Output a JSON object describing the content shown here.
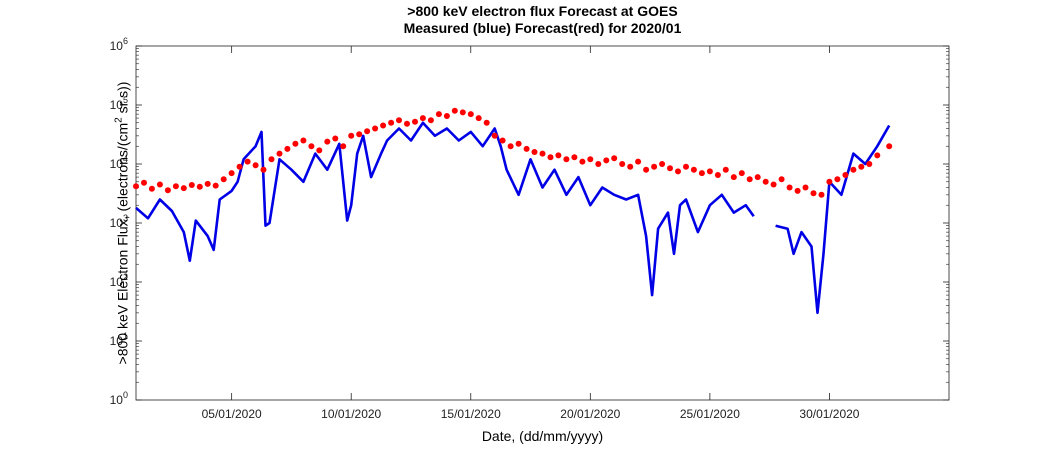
{
  "chart_data": {
    "type": "line",
    "title": ">800 keV electron flux Forecast at GOES",
    "subtitle": "Measured (blue) Forecast(red) for 2020/01",
    "xlabel": "Date, (dd/mm/yyyy)",
    "ylabel": ">800 keV Electron Flux, (electrons/(cm2 sr s))",
    "ylabel_parts": {
      "pre": ">800 keV Electron Flux, (electrons/(cm",
      "sup": "2",
      "post": " sr s))"
    },
    "y_scale": "log",
    "ylim": [
      1,
      1000000
    ],
    "xlim": [
      "2020-01-01",
      "2020-02-04"
    ],
    "grid": false,
    "x_ticks": [
      {
        "x": "2020-01-05",
        "label": "05/01/2020"
      },
      {
        "x": "2020-01-10",
        "label": "10/01/2020"
      },
      {
        "x": "2020-01-15",
        "label": "15/01/2020"
      },
      {
        "x": "2020-01-20",
        "label": "20/01/2020"
      },
      {
        "x": "2020-01-25",
        "label": "25/01/2020"
      },
      {
        "x": "2020-01-30",
        "label": "30/01/2020"
      }
    ],
    "y_ticks": [
      {
        "value": 1,
        "base": "10",
        "exp": "0"
      },
      {
        "value": 10,
        "base": "10",
        "exp": "1"
      },
      {
        "value": 100,
        "base": "10",
        "exp": "2"
      },
      {
        "value": 1000,
        "base": "10",
        "exp": "3"
      },
      {
        "value": 10000,
        "base": "10",
        "exp": "4"
      },
      {
        "value": 100000,
        "base": "10",
        "exp": "5"
      },
      {
        "value": 1000000,
        "base": "10",
        "exp": "6"
      }
    ],
    "series": [
      {
        "style": "line",
        "color": "#0000e6",
        "points": [
          [
            "2020-01-01 00:00",
            1800
          ],
          [
            "2020-01-01 12:00",
            1200
          ],
          [
            "2020-01-02 00:00",
            2500
          ],
          [
            "2020-01-02 12:00",
            1600
          ],
          [
            "2020-01-03 00:00",
            700
          ],
          [
            "2020-01-03 06:00",
            230
          ],
          [
            "2020-01-03 12:00",
            1100
          ],
          [
            "2020-01-04 00:00",
            600
          ],
          [
            "2020-01-04 06:00",
            350
          ],
          [
            "2020-01-04 12:00",
            2500
          ],
          [
            "2020-01-05 00:00",
            3500
          ],
          [
            "2020-01-05 06:00",
            5000
          ],
          [
            "2020-01-05 12:00",
            12000
          ],
          [
            "2020-01-06 00:00",
            20000
          ],
          [
            "2020-01-06 06:00",
            35000
          ],
          [
            "2020-01-06 10:00",
            900
          ],
          [
            "2020-01-06 14:00",
            1000
          ],
          [
            "2020-01-07 00:00",
            12000
          ],
          [
            "2020-01-07 12:00",
            8000
          ],
          [
            "2020-01-08 00:00",
            5000
          ],
          [
            "2020-01-08 12:00",
            15000
          ],
          [
            "2020-01-09 00:00",
            8000
          ],
          [
            "2020-01-09 12:00",
            22000
          ],
          [
            "2020-01-09 20:00",
            1100
          ],
          [
            "2020-01-10 00:00",
            2000
          ],
          [
            "2020-01-10 06:00",
            15000
          ],
          [
            "2020-01-10 12:00",
            30000
          ],
          [
            "2020-01-10 20:00",
            6000
          ],
          [
            "2020-01-11 06:00",
            15000
          ],
          [
            "2020-01-11 12:00",
            25000
          ],
          [
            "2020-01-12 00:00",
            40000
          ],
          [
            "2020-01-12 12:00",
            25000
          ],
          [
            "2020-01-13 00:00",
            50000
          ],
          [
            "2020-01-13 12:00",
            30000
          ],
          [
            "2020-01-14 00:00",
            40000
          ],
          [
            "2020-01-14 12:00",
            25000
          ],
          [
            "2020-01-15 00:00",
            35000
          ],
          [
            "2020-01-15 12:00",
            20000
          ],
          [
            "2020-01-16 00:00",
            40000
          ],
          [
            "2020-01-16 06:00",
            20000
          ],
          [
            "2020-01-16 12:00",
            8000
          ],
          [
            "2020-01-17 00:00",
            3000
          ],
          [
            "2020-01-17 12:00",
            12000
          ],
          [
            "2020-01-18 00:00",
            4000
          ],
          [
            "2020-01-18 12:00",
            8000
          ],
          [
            "2020-01-19 00:00",
            3000
          ],
          [
            "2020-01-19 12:00",
            6000
          ],
          [
            "2020-01-20 00:00",
            2000
          ],
          [
            "2020-01-20 12:00",
            4000
          ],
          [
            "2020-01-21 00:00",
            3000
          ],
          [
            "2020-01-21 12:00",
            2500
          ],
          [
            "2020-01-22 00:00",
            3000
          ],
          [
            "2020-01-22 08:00",
            600
          ],
          [
            "2020-01-22 14:00",
            60
          ],
          [
            "2020-01-22 20:00",
            800
          ],
          [
            "2020-01-23 06:00",
            1500
          ],
          [
            "2020-01-23 12:00",
            300
          ],
          [
            "2020-01-23 18:00",
            2000
          ],
          [
            "2020-01-24 00:00",
            2500
          ],
          [
            "2020-01-24 12:00",
            700
          ],
          [
            "2020-01-25 00:00",
            2000
          ],
          [
            "2020-01-25 12:00",
            3000
          ],
          [
            "2020-01-26 00:00",
            1500
          ],
          [
            "2020-01-26 12:00",
            2000
          ],
          [
            "2020-01-26 20:00",
            1300
          ],
          null,
          [
            "2020-01-27 18:00",
            900
          ],
          [
            "2020-01-28 06:00",
            800
          ],
          [
            "2020-01-28 12:00",
            300
          ],
          [
            "2020-01-28 20:00",
            700
          ],
          [
            "2020-01-29 06:00",
            400
          ],
          [
            "2020-01-29 12:00",
            30
          ],
          [
            "2020-01-29 18:00",
            300
          ],
          [
            "2020-01-30 00:00",
            5000
          ],
          [
            "2020-01-30 12:00",
            3000
          ],
          [
            "2020-01-31 00:00",
            15000
          ],
          [
            "2020-01-31 12:00",
            10000
          ],
          [
            "2020-02-01 00:00",
            20000
          ],
          [
            "2020-02-01 12:00",
            45000
          ]
        ]
      },
      {
        "style": "markers",
        "color": "#ff0000",
        "points": [
          [
            "2020-01-01 00:00",
            4200
          ],
          [
            "2020-01-01 08:00",
            4800
          ],
          [
            "2020-01-01 16:00",
            3800
          ],
          [
            "2020-01-02 00:00",
            4500
          ],
          [
            "2020-01-02 08:00",
            3600
          ],
          [
            "2020-01-02 16:00",
            4200
          ],
          [
            "2020-01-03 00:00",
            3900
          ],
          [
            "2020-01-03 08:00",
            4400
          ],
          [
            "2020-01-03 16:00",
            4100
          ],
          [
            "2020-01-04 00:00",
            4600
          ],
          [
            "2020-01-04 08:00",
            4300
          ],
          [
            "2020-01-04 16:00",
            5500
          ],
          [
            "2020-01-05 00:00",
            7000
          ],
          [
            "2020-01-05 08:00",
            9000
          ],
          [
            "2020-01-05 16:00",
            11000
          ],
          [
            "2020-01-06 00:00",
            9500
          ],
          [
            "2020-01-06 08:00",
            8000
          ],
          [
            "2020-01-06 16:00",
            12000
          ],
          [
            "2020-01-07 00:00",
            15000
          ],
          [
            "2020-01-07 08:00",
            18000
          ],
          [
            "2020-01-07 16:00",
            22000
          ],
          [
            "2020-01-08 00:00",
            25000
          ],
          [
            "2020-01-08 08:00",
            20000
          ],
          [
            "2020-01-08 16:00",
            17000
          ],
          [
            "2020-01-09 00:00",
            24000
          ],
          [
            "2020-01-09 08:00",
            27000
          ],
          [
            "2020-01-09 16:00",
            20000
          ],
          [
            "2020-01-10 00:00",
            30000
          ],
          [
            "2020-01-10 08:00",
            32000
          ],
          [
            "2020-01-10 16:00",
            36000
          ],
          [
            "2020-01-11 00:00",
            40000
          ],
          [
            "2020-01-11 08:00",
            45000
          ],
          [
            "2020-01-11 16:00",
            50000
          ],
          [
            "2020-01-12 00:00",
            55000
          ],
          [
            "2020-01-12 08:00",
            48000
          ],
          [
            "2020-01-12 16:00",
            52000
          ],
          [
            "2020-01-13 00:00",
            60000
          ],
          [
            "2020-01-13 08:00",
            55000
          ],
          [
            "2020-01-13 16:00",
            70000
          ],
          [
            "2020-01-14 00:00",
            65000
          ],
          [
            "2020-01-14 08:00",
            80000
          ],
          [
            "2020-01-14 16:00",
            75000
          ],
          [
            "2020-01-15 00:00",
            70000
          ],
          [
            "2020-01-15 08:00",
            60000
          ],
          [
            "2020-01-15 16:00",
            50000
          ],
          [
            "2020-01-16 00:00",
            30000
          ],
          [
            "2020-01-16 08:00",
            25000
          ],
          [
            "2020-01-16 16:00",
            20000
          ],
          [
            "2020-01-17 00:00",
            22000
          ],
          [
            "2020-01-17 08:00",
            18000
          ],
          [
            "2020-01-17 16:00",
            16000
          ],
          [
            "2020-01-18 00:00",
            15000
          ],
          [
            "2020-01-18 08:00",
            13000
          ],
          [
            "2020-01-18 16:00",
            14000
          ],
          [
            "2020-01-19 00:00",
            12000
          ],
          [
            "2020-01-19 08:00",
            13000
          ],
          [
            "2020-01-19 16:00",
            11000
          ],
          [
            "2020-01-20 00:00",
            12000
          ],
          [
            "2020-01-20 08:00",
            10000
          ],
          [
            "2020-01-20 16:00",
            11500
          ],
          [
            "2020-01-21 00:00",
            12500
          ],
          [
            "2020-01-21 08:00",
            10000
          ],
          [
            "2020-01-21 16:00",
            9000
          ],
          [
            "2020-01-22 00:00",
            11000
          ],
          [
            "2020-01-22 08:00",
            8000
          ],
          [
            "2020-01-22 16:00",
            9000
          ],
          [
            "2020-01-23 00:00",
            10000
          ],
          [
            "2020-01-23 08:00",
            8500
          ],
          [
            "2020-01-23 16:00",
            7500
          ],
          [
            "2020-01-24 00:00",
            9000
          ],
          [
            "2020-01-24 08:00",
            8000
          ],
          [
            "2020-01-24 16:00",
            7000
          ],
          [
            "2020-01-25 00:00",
            7500
          ],
          [
            "2020-01-25 08:00",
            6500
          ],
          [
            "2020-01-25 16:00",
            8000
          ],
          [
            "2020-01-26 00:00",
            6000
          ],
          [
            "2020-01-26 08:00",
            7000
          ],
          [
            "2020-01-26 16:00",
            5500
          ],
          [
            "2020-01-27 00:00",
            6000
          ],
          [
            "2020-01-27 08:00",
            5000
          ],
          [
            "2020-01-27 16:00",
            4500
          ],
          [
            "2020-01-28 00:00",
            5500
          ],
          [
            "2020-01-28 08:00",
            4000
          ],
          [
            "2020-01-28 16:00",
            3500
          ],
          [
            "2020-01-29 00:00",
            4000
          ],
          [
            "2020-01-29 08:00",
            3200
          ],
          [
            "2020-01-29 16:00",
            3000
          ],
          [
            "2020-01-30 00:00",
            5000
          ],
          [
            "2020-01-30 08:00",
            5500
          ],
          [
            "2020-01-30 16:00",
            6500
          ],
          [
            "2020-01-31 00:00",
            8000
          ],
          [
            "2020-01-31 08:00",
            9000
          ],
          [
            "2020-01-31 16:00",
            10000
          ],
          [
            "2020-02-01 00:00",
            14000
          ],
          [
            "2020-02-01 12:00",
            20000
          ]
        ]
      }
    ]
  }
}
